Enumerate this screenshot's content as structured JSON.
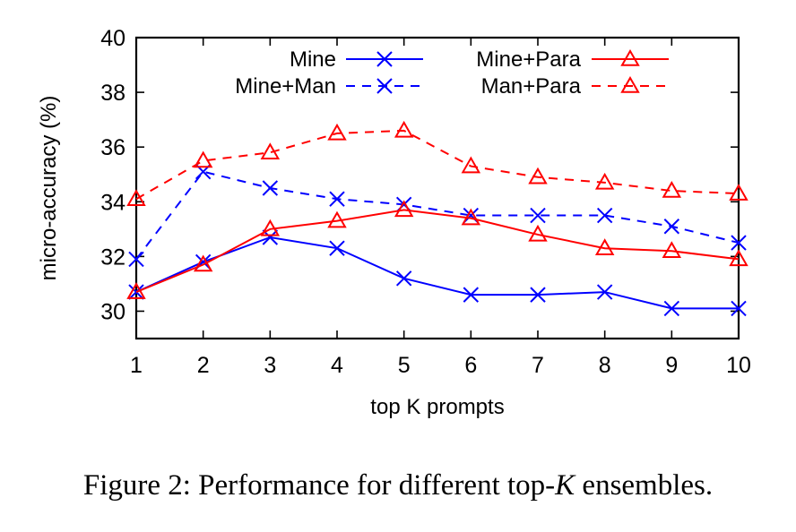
{
  "chart_data": {
    "type": "line",
    "title": "",
    "xlabel": "top K prompts",
    "ylabel": "micro-accuracy (%)",
    "x": [
      1,
      2,
      3,
      4,
      5,
      6,
      7,
      8,
      9,
      10
    ],
    "xlim": [
      1,
      10
    ],
    "ylim": [
      29,
      40
    ],
    "xticks": [
      "1",
      "2",
      "3",
      "4",
      "5",
      "6",
      "7",
      "8",
      "9",
      "10"
    ],
    "yticks": [
      "30",
      "32",
      "34",
      "36",
      "38",
      "40"
    ],
    "grid": false,
    "legend_position": "top",
    "series": [
      {
        "name": "Mine",
        "color": "#0000ff",
        "dash": "solid",
        "marker": "x",
        "values": [
          30.7,
          31.8,
          32.7,
          32.3,
          31.2,
          30.6,
          30.6,
          30.7,
          30.1,
          30.1
        ]
      },
      {
        "name": "Mine+Man",
        "color": "#0000ff",
        "dash": "dashed",
        "marker": "x",
        "values": [
          31.9,
          35.1,
          34.5,
          34.1,
          33.9,
          33.5,
          33.5,
          33.5,
          33.1,
          32.5
        ]
      },
      {
        "name": "Mine+Para",
        "color": "#ff0000",
        "dash": "solid",
        "marker": "triangle",
        "values": [
          30.7,
          31.7,
          33.0,
          33.3,
          33.7,
          33.4,
          32.8,
          32.3,
          32.2,
          31.9
        ]
      },
      {
        "name": "Man+Para",
        "color": "#ff0000",
        "dash": "dashed",
        "marker": "triangle",
        "values": [
          34.1,
          35.5,
          35.8,
          36.5,
          36.6,
          35.3,
          34.9,
          34.7,
          34.4,
          34.3
        ]
      }
    ]
  },
  "caption": {
    "prefix": "Figure 2: Performance for different top-",
    "k": "K",
    "suffix": " ensembles."
  }
}
